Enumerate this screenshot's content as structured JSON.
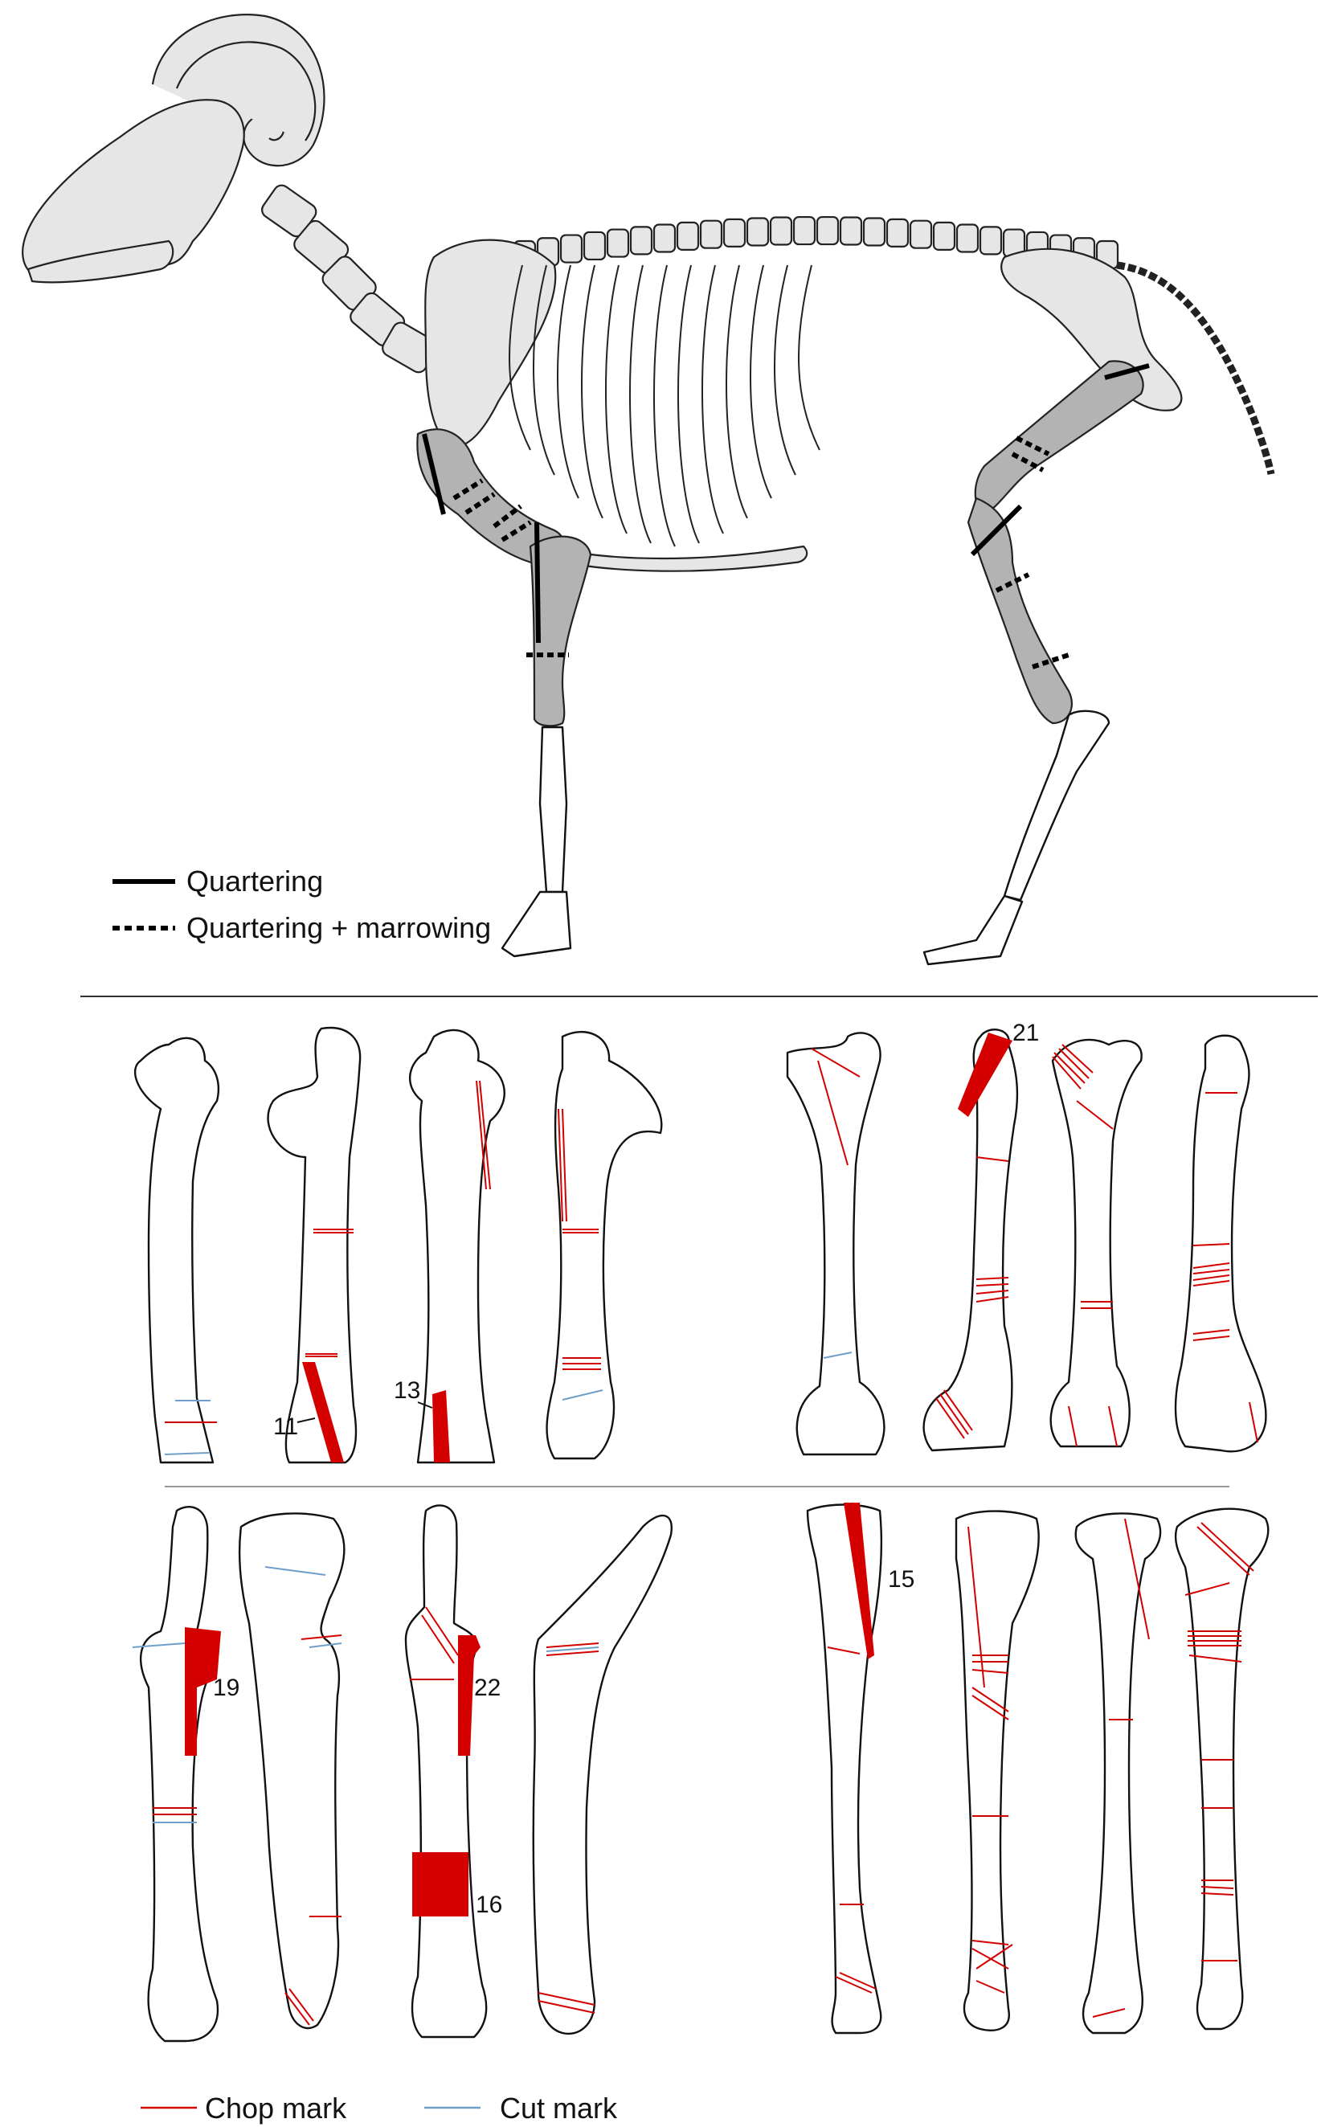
{
  "legend_top": {
    "solid_label": "Quartering",
    "dashed_label": "Quartering + marrowing"
  },
  "legend_bottom": {
    "chop_label": "Chop mark",
    "cut_label": "Cut mark"
  },
  "colors": {
    "chop": "#d40000",
    "cut": "#6f9fc8",
    "outline": "#111111",
    "skeleton_fill": "#e6e6e6",
    "highlight_bone": "#b3b3b3"
  },
  "specimen_numbers": {
    "n11": "11",
    "n13": "13",
    "n21": "21",
    "n19": "19",
    "n22": "22",
    "n16": "16",
    "n15": "15"
  }
}
